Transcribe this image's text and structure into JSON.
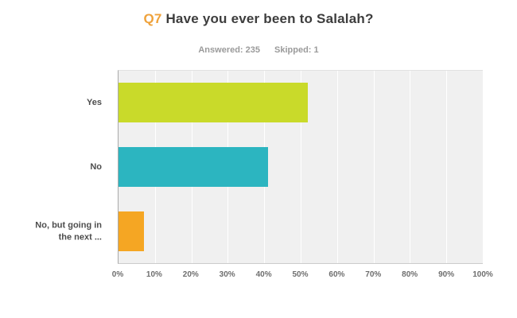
{
  "header": {
    "question_number": "Q7",
    "title_text": "Have you ever been to Salalah?",
    "answered_label": "Answered: 235",
    "skipped_label": "Skipped: 1"
  },
  "chart_data": {
    "type": "bar",
    "orientation": "horizontal",
    "title": "Q7 Have you ever been to Salalah?",
    "subtitle": "Answered: 235  Skipped: 1",
    "categories": [
      "Yes",
      "No",
      "No, but going in the next ..."
    ],
    "values": [
      52,
      41,
      7
    ],
    "colors": [
      "#c9da2a",
      "#2cb5c0",
      "#f5a623"
    ],
    "xlabel": "",
    "ylabel": "",
    "xlim": [
      0,
      100
    ],
    "x_ticks": [
      "0%",
      "10%",
      "20%",
      "30%",
      "40%",
      "50%",
      "60%",
      "70%",
      "80%",
      "90%",
      "100%"
    ],
    "grid": true,
    "plot_background": "#f0f0f0",
    "legend_position": "none"
  }
}
